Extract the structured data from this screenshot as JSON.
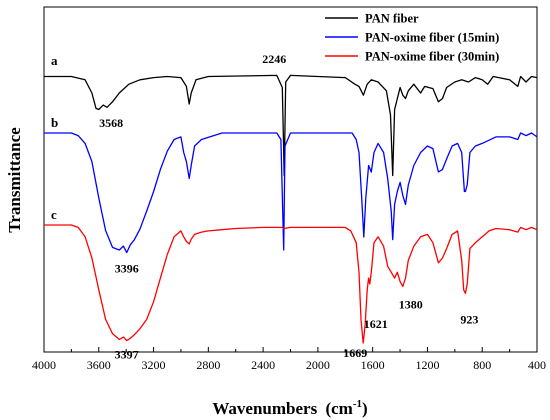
{
  "chart_data": {
    "type": "line",
    "xlabel": "Wavenumbers",
    "xlabel_unit": "(cm",
    "xlabel_sup": "-1",
    "xlabel_close": ")",
    "ylabel": "Transmittance",
    "xlim": [
      4000,
      400
    ],
    "x_ticks": [
      "4000",
      "3600",
      "3200",
      "2800",
      "2400",
      "2000",
      "1600",
      "1200",
      "800",
      "400"
    ],
    "grid": false,
    "legend_position": "top-right",
    "series": [
      {
        "name": "PAN fiber",
        "letter": "a",
        "color": "#000000",
        "points": [
          [
            4000,
            0.05
          ],
          [
            3800,
            0.05
          ],
          [
            3700,
            0.08
          ],
          [
            3650,
            0.2
          ],
          [
            3620,
            0.34
          ],
          [
            3600,
            0.35
          ],
          [
            3568,
            0.31
          ],
          [
            3540,
            0.33
          ],
          [
            3500,
            0.28
          ],
          [
            3450,
            0.2
          ],
          [
            3380,
            0.12
          ],
          [
            3300,
            0.08
          ],
          [
            3200,
            0.06
          ],
          [
            3100,
            0.05
          ],
          [
            3000,
            0.06
          ],
          [
            2960,
            0.14
          ],
          [
            2940,
            0.3
          ],
          [
            2925,
            0.2
          ],
          [
            2890,
            0.08
          ],
          [
            2800,
            0.05
          ],
          [
            2300,
            0.04
          ],
          [
            2260,
            0.15
          ],
          [
            2246,
            0.95
          ],
          [
            2235,
            0.1
          ],
          [
            2200,
            0.04
          ],
          [
            1800,
            0.06
          ],
          [
            1730,
            0.12
          ],
          [
            1700,
            0.14
          ],
          [
            1668,
            0.22
          ],
          [
            1640,
            0.12
          ],
          [
            1610,
            0.08
          ],
          [
            1560,
            0.1
          ],
          [
            1500,
            0.18
          ],
          [
            1470,
            0.4
          ],
          [
            1454,
            0.95
          ],
          [
            1440,
            0.35
          ],
          [
            1400,
            0.15
          ],
          [
            1380,
            0.22
          ],
          [
            1360,
            0.25
          ],
          [
            1340,
            0.18
          ],
          [
            1300,
            0.12
          ],
          [
            1250,
            0.2
          ],
          [
            1220,
            0.14
          ],
          [
            1160,
            0.16
          ],
          [
            1120,
            0.28
          ],
          [
            1090,
            0.25
          ],
          [
            1060,
            0.15
          ],
          [
            1000,
            0.1
          ],
          [
            950,
            0.08
          ],
          [
            900,
            0.1
          ],
          [
            850,
            0.06
          ],
          [
            800,
            0.08
          ],
          [
            760,
            0.12
          ],
          [
            720,
            0.05
          ],
          [
            600,
            0.08
          ],
          [
            540,
            0.14
          ],
          [
            520,
            0.05
          ],
          [
            480,
            0.1
          ],
          [
            440,
            0.05
          ],
          [
            400,
            0.06
          ]
        ]
      },
      {
        "name": "PAN-oxime fiber (15min)",
        "letter": "b",
        "color": "#0000ff",
        "points": [
          [
            4000,
            0.0
          ],
          [
            3800,
            0.0
          ],
          [
            3750,
            0.02
          ],
          [
            3700,
            0.08
          ],
          [
            3650,
            0.22
          ],
          [
            3600,
            0.5
          ],
          [
            3550,
            0.75
          ],
          [
            3500,
            0.88
          ],
          [
            3450,
            0.9
          ],
          [
            3420,
            0.87
          ],
          [
            3396,
            0.92
          ],
          [
            3370,
            0.86
          ],
          [
            3340,
            0.82
          ],
          [
            3300,
            0.74
          ],
          [
            3250,
            0.6
          ],
          [
            3200,
            0.45
          ],
          [
            3150,
            0.28
          ],
          [
            3100,
            0.14
          ],
          [
            3050,
            0.05
          ],
          [
            3000,
            0.03
          ],
          [
            2980,
            0.15
          ],
          [
            2960,
            0.22
          ],
          [
            2940,
            0.35
          ],
          [
            2925,
            0.25
          ],
          [
            2900,
            0.1
          ],
          [
            2850,
            0.05
          ],
          [
            2700,
            0.0
          ],
          [
            2300,
            0.0
          ],
          [
            2270,
            0.05
          ],
          [
            2250,
            0.9
          ],
          [
            2240,
            0.1
          ],
          [
            2200,
            0.0
          ],
          [
            1750,
            0.0
          ],
          [
            1720,
            0.05
          ],
          [
            1700,
            0.15
          ],
          [
            1680,
            0.5
          ],
          [
            1665,
            0.8
          ],
          [
            1650,
            0.5
          ],
          [
            1630,
            0.25
          ],
          [
            1610,
            0.3
          ],
          [
            1590,
            0.15
          ],
          [
            1560,
            0.08
          ],
          [
            1520,
            0.15
          ],
          [
            1490,
            0.35
          ],
          [
            1465,
            0.6
          ],
          [
            1454,
            0.82
          ],
          [
            1440,
            0.55
          ],
          [
            1420,
            0.45
          ],
          [
            1400,
            0.38
          ],
          [
            1380,
            0.48
          ],
          [
            1360,
            0.55
          ],
          [
            1340,
            0.4
          ],
          [
            1300,
            0.25
          ],
          [
            1250,
            0.15
          ],
          [
            1200,
            0.1
          ],
          [
            1160,
            0.12
          ],
          [
            1120,
            0.3
          ],
          [
            1090,
            0.28
          ],
          [
            1060,
            0.2
          ],
          [
            1020,
            0.1
          ],
          [
            980,
            0.08
          ],
          [
            950,
            0.15
          ],
          [
            930,
            0.45
          ],
          [
            923,
            0.45
          ],
          [
            910,
            0.4
          ],
          [
            890,
            0.15
          ],
          [
            850,
            0.1
          ],
          [
            800,
            0.08
          ],
          [
            700,
            0.03
          ],
          [
            600,
            0.03
          ],
          [
            540,
            0.05
          ],
          [
            520,
            0.0
          ],
          [
            480,
            0.02
          ],
          [
            440,
            0.0
          ],
          [
            400,
            0.03
          ]
        ]
      },
      {
        "name": "PAN-oxime fiber (30min)",
        "letter": "c",
        "color": "#ff0000",
        "points": [
          [
            4000,
            0.0
          ],
          [
            3800,
            0.0
          ],
          [
            3750,
            0.02
          ],
          [
            3700,
            0.1
          ],
          [
            3650,
            0.28
          ],
          [
            3600,
            0.55
          ],
          [
            3550,
            0.8
          ],
          [
            3500,
            0.92
          ],
          [
            3450,
            0.97
          ],
          [
            3420,
            0.95
          ],
          [
            3397,
            0.98
          ],
          [
            3370,
            0.96
          ],
          [
            3340,
            0.93
          ],
          [
            3300,
            0.88
          ],
          [
            3250,
            0.8
          ],
          [
            3200,
            0.65
          ],
          [
            3150,
            0.45
          ],
          [
            3100,
            0.25
          ],
          [
            3050,
            0.1
          ],
          [
            3000,
            0.05
          ],
          [
            2980,
            0.1
          ],
          [
            2960,
            0.14
          ],
          [
            2940,
            0.16
          ],
          [
            2925,
            0.12
          ],
          [
            2900,
            0.08
          ],
          [
            2850,
            0.06
          ],
          [
            2800,
            0.05
          ],
          [
            2700,
            0.04
          ],
          [
            2600,
            0.03
          ],
          [
            2400,
            0.02
          ],
          [
            2300,
            0.02
          ],
          [
            2260,
            0.02
          ],
          [
            2250,
            0.03
          ],
          [
            2200,
            0.02
          ],
          [
            1800,
            0.02
          ],
          [
            1760,
            0.05
          ],
          [
            1720,
            0.15
          ],
          [
            1700,
            0.4
          ],
          [
            1685,
            0.8
          ],
          [
            1669,
            1.0
          ],
          [
            1655,
            0.85
          ],
          [
            1640,
            0.55
          ],
          [
            1630,
            0.45
          ],
          [
            1621,
            0.5
          ],
          [
            1610,
            0.4
          ],
          [
            1590,
            0.15
          ],
          [
            1560,
            0.1
          ],
          [
            1520,
            0.18
          ],
          [
            1490,
            0.35
          ],
          [
            1465,
            0.4
          ],
          [
            1440,
            0.45
          ],
          [
            1420,
            0.4
          ],
          [
            1400,
            0.48
          ],
          [
            1380,
            0.52
          ],
          [
            1360,
            0.45
          ],
          [
            1340,
            0.3
          ],
          [
            1300,
            0.18
          ],
          [
            1250,
            0.1
          ],
          [
            1200,
            0.08
          ],
          [
            1160,
            0.15
          ],
          [
            1120,
            0.32
          ],
          [
            1090,
            0.28
          ],
          [
            1060,
            0.2
          ],
          [
            1020,
            0.08
          ],
          [
            980,
            0.05
          ],
          [
            950,
            0.3
          ],
          [
            935,
            0.55
          ],
          [
            923,
            0.58
          ],
          [
            910,
            0.5
          ],
          [
            890,
            0.2
          ],
          [
            850,
            0.15
          ],
          [
            800,
            0.1
          ],
          [
            750,
            0.05
          ],
          [
            700,
            0.03
          ],
          [
            600,
            0.04
          ],
          [
            540,
            0.06
          ],
          [
            520,
            0.02
          ],
          [
            480,
            0.04
          ],
          [
            440,
            0.02
          ],
          [
            400,
            0.04
          ]
        ]
      }
    ],
    "annotations": [
      {
        "text": "2246",
        "x": 2246,
        "series": 0
      },
      {
        "text": "3568",
        "x": 3568,
        "series": 0
      },
      {
        "text": "3396",
        "x": 3396,
        "series": 1
      },
      {
        "text": "3397",
        "x": 3397,
        "series": 2
      },
      {
        "text": "1669",
        "x": 1669,
        "series": 2
      },
      {
        "text": "1621",
        "x": 1621,
        "series": 2
      },
      {
        "text": "1380",
        "x": 1380,
        "series": 2
      },
      {
        "text": "923",
        "x": 923,
        "series": 2
      }
    ]
  }
}
